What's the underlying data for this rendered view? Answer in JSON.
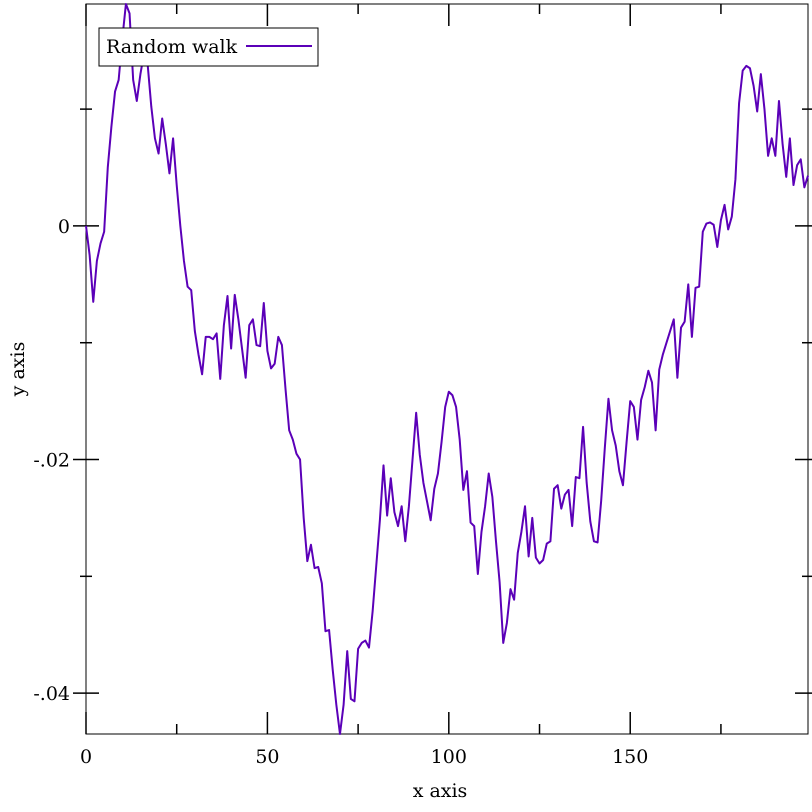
{
  "chart_data": {
    "type": "line",
    "title": "",
    "xlabel": "x axis",
    "ylabel": "y axis",
    "xlim": [
      0,
      199
    ],
    "ylim": [
      -0.0435,
      0.019
    ],
    "x_ticks": [
      0,
      50,
      100,
      150
    ],
    "x_tick_labels": [
      "0",
      "50",
      "100",
      "150"
    ],
    "y_ticks": [
      0,
      -0.02,
      -0.04
    ],
    "y_tick_labels": [
      "0",
      "-.02",
      "-.04"
    ],
    "grid": false,
    "legend_position": "top-left",
    "series": [
      {
        "name": "Random walk",
        "color": "#5b00b8",
        "x": [
          0,
          1,
          2,
          3,
          4,
          5,
          6,
          7,
          8,
          9,
          10,
          11,
          12,
          13,
          14,
          15,
          16,
          17,
          18,
          19,
          20,
          21,
          22,
          23,
          24,
          25,
          26,
          27,
          28,
          29,
          30,
          31,
          32,
          33,
          34,
          35,
          36,
          37,
          38,
          39,
          40,
          41,
          42,
          43,
          44,
          45,
          46,
          47,
          48,
          49,
          50,
          51,
          52,
          53,
          54,
          55,
          56,
          57,
          58,
          59,
          60,
          61,
          62,
          63,
          64,
          65,
          66,
          67,
          68,
          69,
          70,
          71,
          72,
          73,
          74,
          75,
          76,
          77,
          78,
          79,
          80,
          81,
          82,
          83,
          84,
          85,
          86,
          87,
          88,
          89,
          90,
          91,
          92,
          93,
          94,
          95,
          96,
          97,
          98,
          99,
          100,
          101,
          102,
          103,
          104,
          105,
          106,
          107,
          108,
          109,
          110,
          111,
          112,
          113,
          114,
          115,
          116,
          117,
          118,
          119,
          120,
          121,
          122,
          123,
          124,
          125,
          126,
          127,
          128,
          129,
          130,
          131,
          132,
          133,
          134,
          135,
          136,
          137,
          138,
          139,
          140,
          141,
          142,
          143,
          144,
          145,
          146,
          147,
          148,
          149,
          150,
          151,
          152,
          153,
          154,
          155,
          156,
          157,
          158,
          159,
          160,
          161,
          162,
          163,
          164,
          165,
          166,
          167,
          168,
          169,
          170,
          171,
          172,
          173,
          174,
          175,
          176,
          177,
          178,
          179,
          180,
          181,
          182,
          183,
          184,
          185,
          186,
          187,
          188,
          189,
          190,
          191,
          192,
          193,
          194,
          195,
          196,
          197,
          198,
          199
        ],
        "y": [
          0,
          -0.0025,
          -0.0065,
          -0.003,
          -0.0015,
          -0.0005,
          0.005,
          0.0085,
          0.0115,
          0.0125,
          0.016,
          0.019,
          0.0182,
          0.0125,
          0.0107,
          0.013,
          0.0148,
          0.0138,
          0.0102,
          0.0075,
          0.0062,
          0.0092,
          0.007,
          0.0045,
          0.0075,
          0.0035,
          0,
          -0.003,
          -0.0052,
          -0.0055,
          -0.009,
          -0.011,
          -0.0127,
          -0.0095,
          -0.0095,
          -0.0097,
          -0.0092,
          -0.0131,
          -0.0085,
          -0.006,
          -0.0105,
          -0.0059,
          -0.008,
          -0.0105,
          -0.013,
          -0.0085,
          -0.008,
          -0.0102,
          -0.0103,
          -0.0066,
          -0.0107,
          -0.0122,
          -0.0118,
          -0.0095,
          -0.0102,
          -0.014,
          -0.0175,
          -0.0183,
          -0.0195,
          -0.02,
          -0.025,
          -0.0287,
          -0.0273,
          -0.0293,
          -0.0292,
          -0.0306,
          -0.0347,
          -0.0346,
          -0.038,
          -0.041,
          -0.0435,
          -0.041,
          -0.0364,
          -0.0405,
          -0.0407,
          -0.0362,
          -0.0357,
          -0.0355,
          -0.0361,
          -0.033,
          -0.0291,
          -0.0252,
          -0.0205,
          -0.0248,
          -0.0216,
          -0.0245,
          -0.0257,
          -0.024,
          -0.027,
          -0.024,
          -0.02,
          -0.016,
          -0.0196,
          -0.022,
          -0.0236,
          -0.0252,
          -0.0225,
          -0.0212,
          -0.0185,
          -0.0155,
          -0.0142,
          -0.0145,
          -0.0155,
          -0.0183,
          -0.0226,
          -0.021,
          -0.0254,
          -0.0257,
          -0.0298,
          -0.0262,
          -0.024,
          -0.0212,
          -0.0232,
          -0.027,
          -0.0305,
          -0.0357,
          -0.034,
          -0.0311,
          -0.032,
          -0.028,
          -0.0262,
          -0.024,
          -0.0283,
          -0.025,
          -0.0284,
          -0.0289,
          -0.0286,
          -0.0272,
          -0.027,
          -0.0225,
          -0.0222,
          -0.0242,
          -0.023,
          -0.0226,
          -0.0257,
          -0.0215,
          -0.0216,
          -0.0172,
          -0.022,
          -0.0253,
          -0.027,
          -0.0271,
          -0.0235,
          -0.019,
          -0.0148,
          -0.0175,
          -0.0188,
          -0.021,
          -0.0222,
          -0.0185,
          -0.015,
          -0.0155,
          -0.0183,
          -0.0149,
          -0.0138,
          -0.0124,
          -0.0134,
          -0.0175,
          -0.0123,
          -0.011,
          -0.01,
          -0.009,
          -0.008,
          -0.013,
          -0.0087,
          -0.0082,
          -0.005,
          -0.0095,
          -0.0053,
          -0.0052,
          -0.0005,
          0.0002,
          0.0003,
          0.0001,
          -0.0018,
          0.0005,
          0.0018,
          -0.0003,
          0.0008,
          0.004,
          0.0105,
          0.0133,
          0.0137,
          0.0135,
          0.012,
          0.0098,
          0.013,
          0.01,
          0.006,
          0.0075,
          0.006,
          0.0107,
          0.007,
          0.0042,
          0.0075,
          0.0035,
          0.0052,
          0.0057,
          0.0033,
          0.0043
        ]
      }
    ]
  }
}
